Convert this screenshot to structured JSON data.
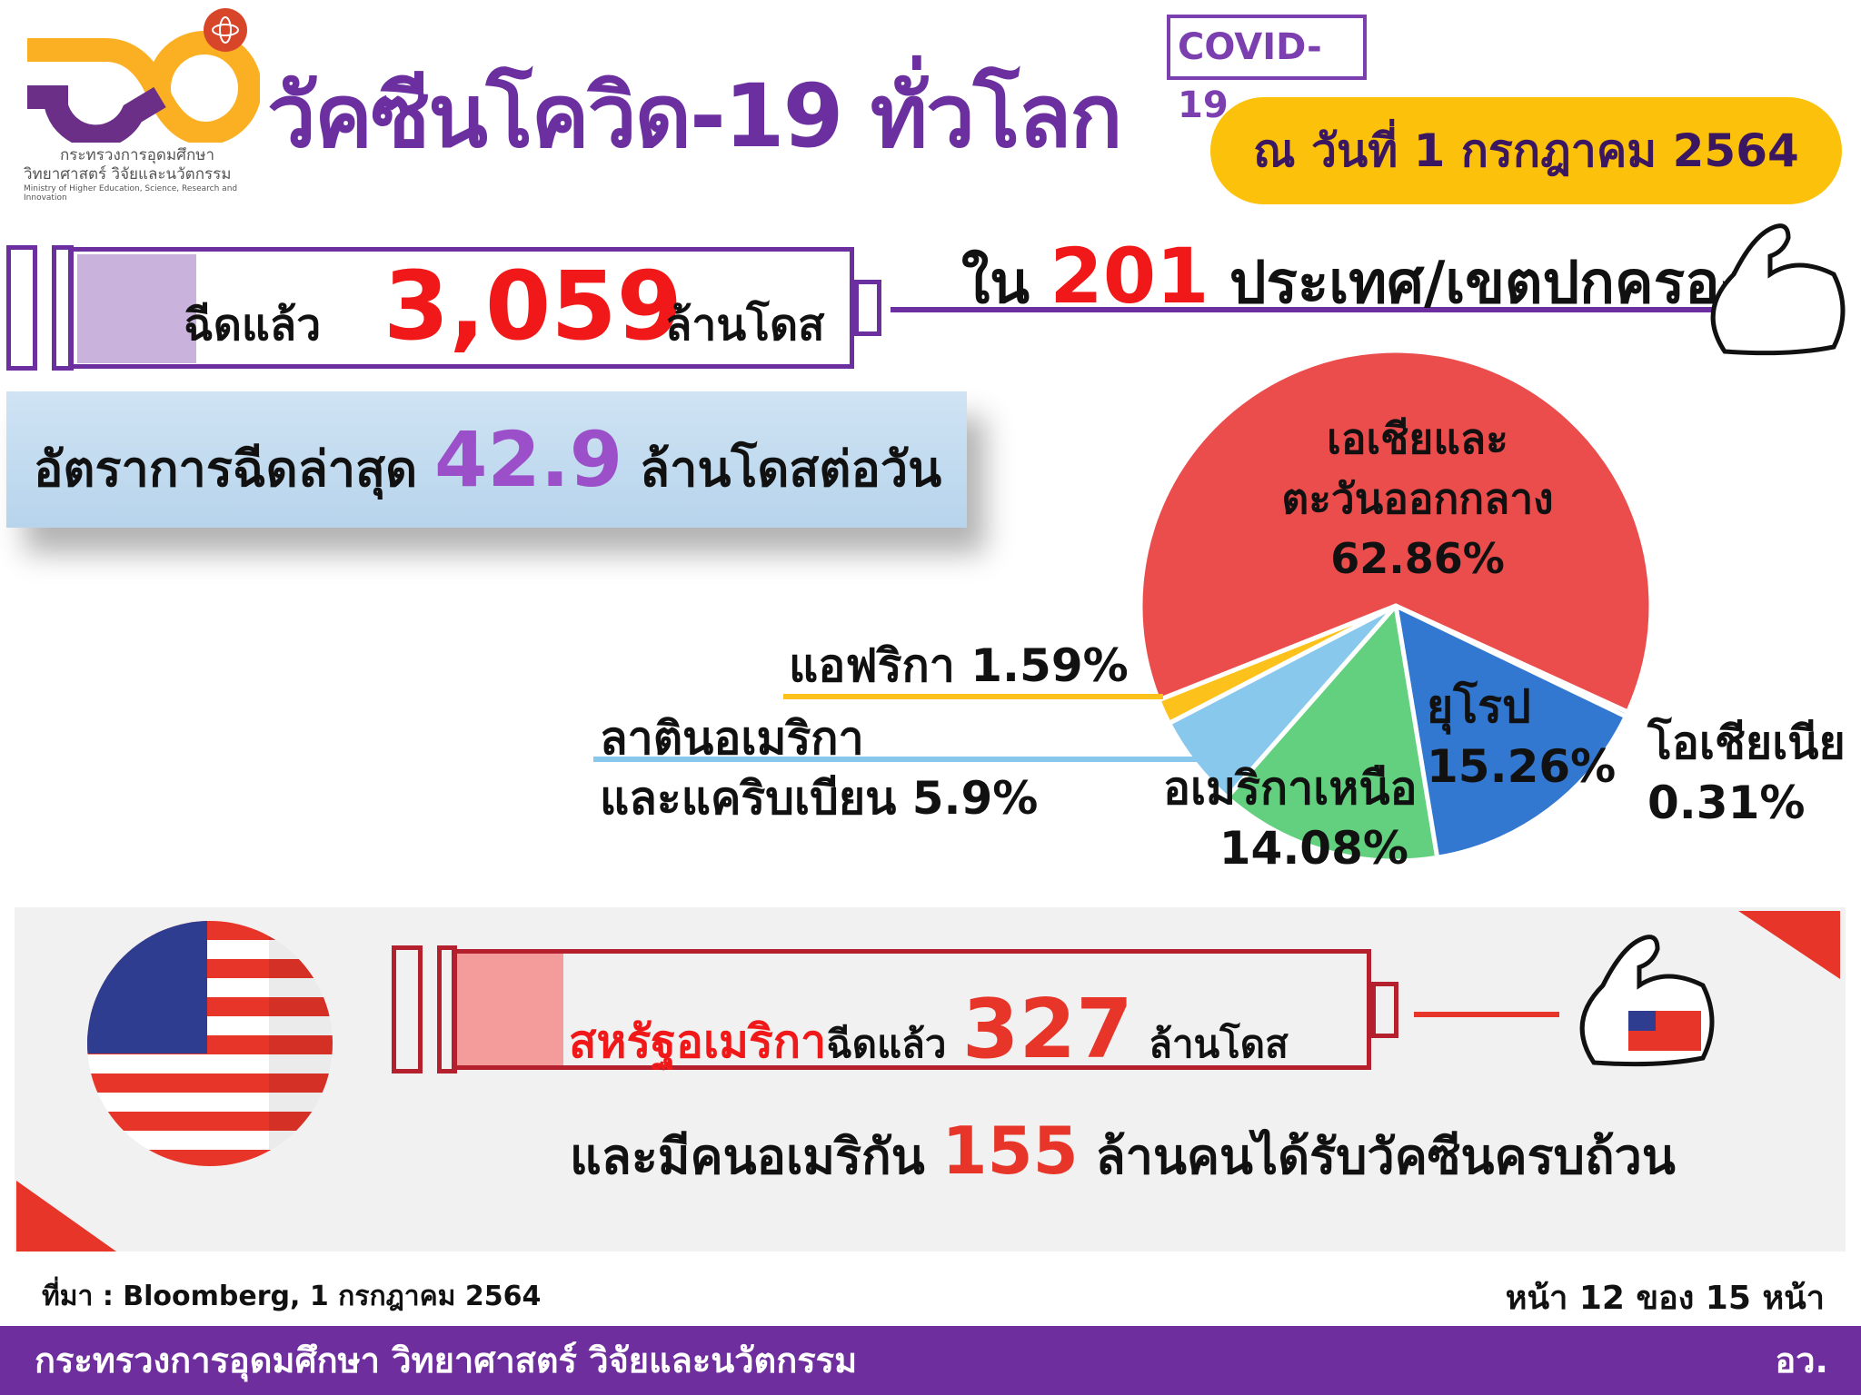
{
  "header": {
    "logo_text_th_1": "กระทรวงการอุดมศึกษา",
    "logo_text_th_2": "วิทยาศาสตร์ วิจัยและนวัตกรรม",
    "logo_text_en": "Ministry of Higher Education, Science, Research and Innovation",
    "title": "วัคซีนโควิด-19 ทั่วโลก",
    "covid_tag": "COVID-19",
    "date": "ณ วันที่ 1 กรกฎาคม 2564"
  },
  "global": {
    "dosed_label": "ฉีดแล้ว",
    "doses": "3,059",
    "doses_unit": "ล้านโดส",
    "countries_prefix": "ใน",
    "countries": "201",
    "countries_suffix": "ประเทศ/เขตปกครอง",
    "rate_label": "อัตราการฉีดล่าสุด",
    "rate": "42.9",
    "rate_unit": "ล้านโดสต่อวัน"
  },
  "chart_data": {
    "type": "pie",
    "slices": [
      {
        "name": "โอเชียเนีย",
        "value": 0.31,
        "label": "0.31%",
        "color": "#9B7FC9"
      },
      {
        "name": "ยุโรป",
        "value": 15.26,
        "label": "15.26%",
        "color": "#3277D0"
      },
      {
        "name": "อเมริกาเหนือ",
        "value": 14.08,
        "label": "14.08%",
        "color": "#62D07E"
      },
      {
        "name": "ลาตินอเมริกา และแคริบเบียน",
        "value": 5.9,
        "label": "5.9%",
        "color": "#88C8EC"
      },
      {
        "name": "แอฟริกา",
        "value": 1.59,
        "label": "1.59%",
        "color": "#FCC21B"
      },
      {
        "name": "เอเชียและ ตะวันออกกลาง",
        "value": 62.86,
        "label": "62.86%",
        "color": "#EB4D4D"
      }
    ],
    "labels": {
      "asia_1": "เอเชียและ",
      "asia_2": "ตะวันออกกลาง",
      "asia_v": "62.86%",
      "europe": "ยุโรป",
      "europe_v": "15.26%",
      "na": "อเมริกาเหนือ",
      "na_v": "14.08%",
      "africa": "แอฟริกา 1.59%",
      "latin_1": "ลาตินอเมริกา",
      "latin_2": "และแคริบเบียน 5.9%",
      "oceania": "โอเชียเนีย",
      "oceania_v": "0.31%"
    }
  },
  "usa": {
    "country": "สหรัฐอเมริกา",
    "dosed_label": "ฉีดแล้ว",
    "doses": "327",
    "doses_unit": "ล้านโดส",
    "full_prefix": "และมีคนอเมริกัน",
    "full": "155",
    "full_suffix": "ล้านคนได้รับวัคซีนครบถ้วน"
  },
  "source": "ที่มา : Bloomberg, 1 กรกฎาคม 2564",
  "page": "หน้า 12 ของ 15 หน้า",
  "footer": {
    "ministry": "กระทรวงการอุดมศึกษา วิทยาศาสตร์ วิจัยและนวัตกรรม",
    "abbr": "อว."
  },
  "colors": {
    "purple": "#6B2FA0",
    "red": "#F01818",
    "yellow": "#FCC10A",
    "usa_red": "#E8352A"
  }
}
